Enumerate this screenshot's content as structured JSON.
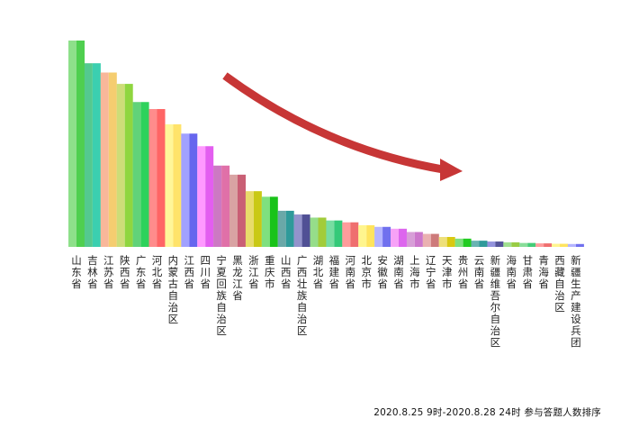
{
  "chart_data": {
    "type": "bar",
    "title": "",
    "xlabel": "",
    "ylabel": "",
    "ylim": [
      0,
      1000
    ],
    "grid": false,
    "legend": "none",
    "categories": [
      "山东省",
      "吉林省",
      "江苏省",
      "陕西省",
      "广东省",
      "河北省",
      "内蒙古自治区",
      "江西省",
      "四川省",
      "宁夏回族自治区",
      "黑龙江省",
      "浙江省",
      "重庆市",
      "山西省",
      "广西壮族自治区",
      "湖北省",
      "福建省",
      "河南省",
      "北京市",
      "安徽省",
      "湖南省",
      "上海市",
      "辽宁省",
      "天津市",
      "贵州省",
      "云南省",
      "新疆维吾尔自治区",
      "海南省",
      "甘肃省",
      "青海省",
      "西藏自治区",
      "新疆生产建设兵团"
    ],
    "values": [
      1000,
      890,
      845,
      790,
      702,
      668,
      594,
      549,
      488,
      394,
      350,
      270,
      243,
      175,
      157,
      142,
      128,
      119,
      105,
      97,
      88,
      72,
      63,
      48,
      40,
      30,
      26,
      22,
      19,
      17,
      15,
      14
    ],
    "colors": [
      [
        "#8ee08a",
        "#4fcf4f"
      ],
      [
        "#54c98f",
        "#3bcfb0"
      ],
      [
        "#f9b79a",
        "#f5cd70"
      ],
      [
        "#cddd78",
        "#8fd63f"
      ],
      [
        "#61d279",
        "#2ed25c"
      ],
      [
        "#ff8c8c",
        "#ff6565"
      ],
      [
        "#fff699",
        "#ffe36a"
      ],
      [
        "#a1a1ff",
        "#6666ee"
      ],
      [
        "#ff99ff",
        "#e35ef0"
      ],
      [
        "#cc79c3",
        "#e070a8"
      ],
      [
        "#d9a3a3",
        "#c95f75"
      ],
      [
        "#e8dc6a",
        "#c9c915"
      ],
      [
        "#7fe07f",
        "#19c319"
      ],
      [
        "#6aa8a8",
        "#2f9a9a"
      ],
      [
        "#9393cc",
        "#505095"
      ],
      [
        "#96dd8a",
        "#a2cc3a"
      ],
      [
        "#77dda1",
        "#34c979"
      ],
      [
        "#ff9c9c",
        "#ef6f6f"
      ],
      [
        "#fff58e",
        "#ffe45e"
      ],
      [
        "#b5b5ff",
        "#7070ee"
      ],
      [
        "#f7a2f7",
        "#dd66ee"
      ],
      [
        "#d79ed7",
        "#cc77cc"
      ],
      [
        "#eab1b1",
        "#cd7a7a"
      ],
      [
        "#eee07a",
        "#d9c911"
      ],
      [
        "#7fe07f",
        "#22cc22"
      ],
      [
        "#6ab3b3",
        "#2f9a9a"
      ],
      [
        "#9393dd",
        "#555599"
      ],
      [
        "#a0e090",
        "#99cc44"
      ],
      [
        "#88dd99",
        "#44cc77"
      ],
      [
        "#ff9c9c",
        "#ef6f6f"
      ],
      [
        "#fff58e",
        "#ffe45e"
      ],
      [
        "#b5b5ff",
        "#7070ee"
      ]
    ]
  },
  "annotation": {
    "arrow_color": "#c73636"
  },
  "caption": "2020.8.25 9时-2020.8.28 24时 参与答题人数排序"
}
